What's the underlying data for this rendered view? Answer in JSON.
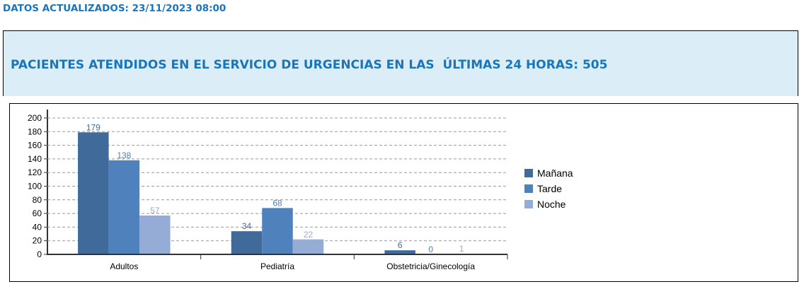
{
  "header": {
    "updated": "DATOS ACTUALIZADOS: 23/11/2023 08:00",
    "title": "PACIENTES ATENDIDOS EN EL SERVICIO DE URGENCIAS EN LAS  ÚLTIMAS 24 HORAS: 505"
  },
  "chart_data": {
    "type": "bar",
    "categories": [
      "Adultos",
      "Pediatría",
      "Obstetricia/Ginecología"
    ],
    "series": [
      {
        "name": "Mañana",
        "values": [
          179,
          34,
          6
        ],
        "color": "#3f6a9a"
      },
      {
        "name": "Tarde",
        "values": [
          138,
          68,
          0
        ],
        "color": "#4f81bd"
      },
      {
        "name": "Noche",
        "values": [
          57,
          22,
          1
        ],
        "color": "#95acd6"
      }
    ],
    "yticks": [
      0,
      20,
      40,
      60,
      80,
      100,
      120,
      140,
      160,
      180,
      200
    ],
    "ylim": [
      0,
      200
    ],
    "grid": true,
    "legend": "right"
  }
}
